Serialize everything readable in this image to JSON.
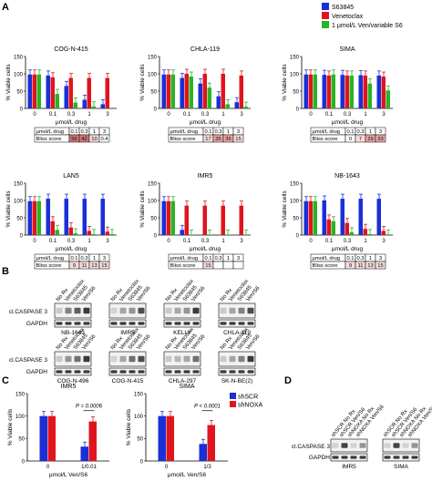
{
  "panel_labels": {
    "A": "A",
    "B": "B",
    "C": "C",
    "D": "D"
  },
  "colors": {
    "blue": "#1a2fd6",
    "red": "#e0141e",
    "green": "#28b424",
    "shade_light": "#f6dcdc",
    "shade_mid": "#eaa7a7",
    "shade_dark": "#d77777"
  },
  "legend_a": [
    "S63845",
    "Venetoclax",
    "1 µmol/L Ven/variable S6"
  ],
  "legend_c": [
    "shSCR",
    "shNOXA"
  ],
  "chart_data": [
    {
      "type": "bar",
      "title": "COG-N-415",
      "ylabel": "% Viable cells",
      "xlabel": "µmol/L drug",
      "ylim": [
        0,
        150
      ],
      "categories": [
        "0",
        "0.1",
        "0.3",
        "1",
        "3"
      ],
      "series": [
        {
          "name": "S63845",
          "values": [
            98,
            95,
            65,
            25,
            12
          ]
        },
        {
          "name": "Venetoclax",
          "values": [
            98,
            90,
            88,
            88,
            88
          ]
        },
        {
          "name": "1 µmol/L Ven/variable S6",
          "values": [
            98,
            42,
            17,
            6,
            null
          ]
        }
      ],
      "table": {
        "row1_label": "µmol/L drug",
        "row1": [
          "0.1",
          "0.3",
          "1",
          "3"
        ],
        "row2_label": "Bliss score",
        "row2": [
          "56",
          "42",
          "10",
          "0.4"
        ]
      }
    },
    {
      "type": "bar",
      "title": "CHLA-119",
      "ylabel": "% Viable cells",
      "xlabel": "µmol/L drug",
      "ylim": [
        0,
        150
      ],
      "categories": [
        "0",
        "0.1",
        "0.3",
        "1",
        "3"
      ],
      "series": [
        {
          "name": "S63845",
          "values": [
            98,
            88,
            72,
            35,
            18
          ]
        },
        {
          "name": "Venetoclax",
          "values": [
            98,
            100,
            100,
            100,
            95
          ]
        },
        {
          "name": "1 µmol/L Ven/variable S6",
          "values": [
            98,
            92,
            60,
            12,
            5
          ]
        }
      ],
      "table": {
        "row1_label": "µmol/L drug",
        "row1": [
          "0.1",
          "0.3",
          "1",
          "3"
        ],
        "row2_label": "Bliss score",
        "row2": [
          "17",
          "35",
          "35",
          "15"
        ]
      }
    },
    {
      "type": "bar",
      "title": "SIMA",
      "ylabel": "% Viable cells",
      "xlabel": "µmol/L drug",
      "ylim": [
        0,
        150
      ],
      "categories": [
        "0",
        "0.1",
        "0.3",
        "1",
        "3"
      ],
      "series": [
        {
          "name": "S63845",
          "values": [
            98,
            97,
            97,
            96,
            95
          ]
        },
        {
          "name": "Venetoclax",
          "values": [
            98,
            95,
            95,
            95,
            92
          ]
        },
        {
          "name": "1 µmol/L Ven/variable S6",
          "values": [
            98,
            98,
            95,
            72,
            52
          ]
        }
      ],
      "table": {
        "row1_label": "µmol/L drug",
        "row1": [
          "0.1",
          "0.3",
          "1",
          "3"
        ],
        "row2_label": "Bliss score",
        "row2": [
          "0",
          "7",
          "29",
          "33"
        ]
      }
    },
    {
      "type": "bar",
      "title": "LAN5",
      "ylabel": "% Viable cells",
      "xlabel": "µmol/L drug",
      "ylim": [
        0,
        150
      ],
      "categories": [
        "0",
        "0.1",
        "0.3",
        "1",
        "3"
      ],
      "series": [
        {
          "name": "S63845",
          "values": [
            98,
            105,
            105,
            105,
            105
          ]
        },
        {
          "name": "Venetoclax",
          "values": [
            98,
            40,
            22,
            12,
            10
          ]
        },
        {
          "name": "1 µmol/L Ven/variable S6",
          "values": [
            98,
            15,
            5,
            3,
            3
          ]
        }
      ],
      "table": {
        "row1_label": "µmol/L drug",
        "row1": [
          "0.1",
          "0.3",
          "1",
          "3"
        ],
        "row2_label": "Bliss score",
        "row2": [
          "9",
          "11",
          "13",
          "15"
        ]
      }
    },
    {
      "type": "bar",
      "title": "IMR5",
      "ylabel": "% Viable cells",
      "xlabel": "µmol/L drug",
      "ylim": [
        0,
        150
      ],
      "categories": [
        "0",
        "0.1",
        "0.3",
        "1",
        "3"
      ],
      "series": [
        {
          "name": "S63845",
          "values": [
            98,
            15,
            null,
            null,
            null
          ]
        },
        {
          "name": "Venetoclax",
          "values": [
            98,
            85,
            85,
            85,
            85
          ]
        },
        {
          "name": "1 µmol/L Ven/variable S6",
          "values": [
            98,
            1,
            1,
            1,
            1
          ]
        }
      ],
      "table": {
        "row1_label": "µmol/L drug",
        "row1": [
          "0.1",
          "0.3",
          "1",
          "3"
        ],
        "row2_label": "Bliss score",
        "row2": [
          "15",
          "",
          "",
          ""
        ]
      }
    },
    {
      "type": "bar",
      "title": "NB-1643",
      "ylabel": "% Viable cells",
      "xlabel": "µmol/L drug",
      "ylim": [
        0,
        150
      ],
      "categories": [
        "0",
        "0.1",
        "0.3",
        "1",
        "3"
      ],
      "series": [
        {
          "name": "S63845",
          "values": [
            98,
            100,
            105,
            105,
            105
          ]
        },
        {
          "name": "Venetoclax",
          "values": [
            98,
            45,
            35,
            18,
            12
          ]
        },
        {
          "name": "1 µmol/L Ven/variable S6",
          "values": [
            98,
            40,
            8,
            3,
            2
          ]
        }
      ],
      "table": {
        "row1_label": "µmol/L drug",
        "row1": [
          "0.1",
          "0.3",
          "1",
          "3"
        ],
        "row2_label": "Bliss score",
        "row2": [
          "9",
          "11",
          "13",
          "15"
        ]
      }
    },
    {
      "type": "bar",
      "title": "IMR5",
      "ylabel": "% Viable cells",
      "xlabel": "µmol/L Ven/S6",
      "ylim": [
        0,
        150
      ],
      "categories": [
        "0",
        "1/0.01"
      ],
      "series": [
        {
          "name": "shSCR",
          "values": [
            100,
            32
          ]
        },
        {
          "name": "shNOXA",
          "values": [
            100,
            88
          ]
        }
      ],
      "annotation": "P = 0.0006"
    },
    {
      "type": "bar",
      "title": "SIMA",
      "ylabel": "% Viable cells",
      "xlabel": "µmol/L Ven/S6",
      "ylim": [
        0,
        150
      ],
      "categories": [
        "0",
        "1/3"
      ],
      "series": [
        {
          "name": "shSCR",
          "values": [
            100,
            38
          ]
        },
        {
          "name": "shNOXA",
          "values": [
            100,
            80
          ]
        }
      ],
      "annotation": "P < 0.0001"
    }
  ],
  "western_b": {
    "columns": [
      "No Rx",
      "Venetoclax",
      "S63845",
      "Ven/S6"
    ],
    "row_labels": [
      "cl.CASPASE 3",
      "GAPDH"
    ],
    "top_cells": [
      "NB-1643",
      "IMR5",
      "KELLY",
      "CHLA-119"
    ],
    "bottom_cells": [
      "COG-N-496",
      "COG-N-415",
      "CHLA-297",
      "SK-N-BE(2)"
    ]
  },
  "western_d": {
    "columns": [
      "shSCR No Rx",
      "shSCR Ven/S6",
      "shNOXA No Rx",
      "shNOXA Ven/S6"
    ],
    "row_labels": [
      "cl.CASPASE 3",
      "GAPDH"
    ],
    "cells": [
      "IMR5",
      "SIMA"
    ]
  }
}
